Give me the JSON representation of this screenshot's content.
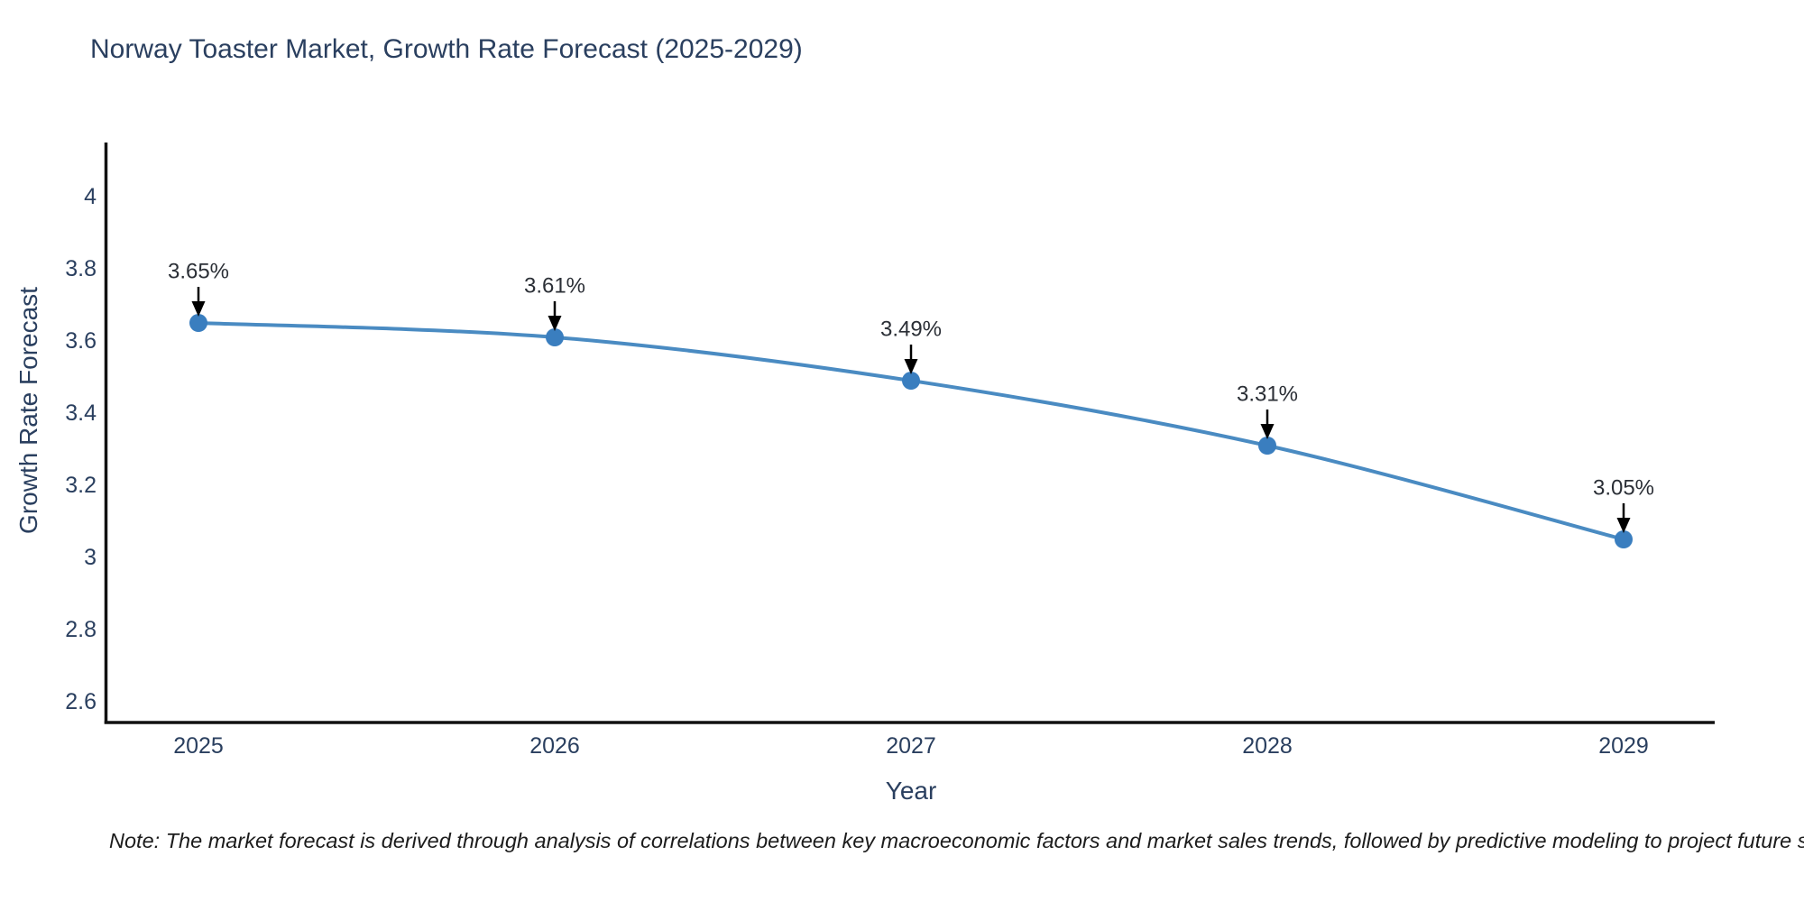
{
  "title": "Norway Toaster Market, Growth Rate Forecast (2025-2029)",
  "footnote": "Note: The market forecast is derived through analysis of correlations between key macroeconomic factors and market sales trends, followed by predictive modeling to project future sales",
  "chart_data": {
    "type": "line",
    "title": "Norway Toaster Market, Growth Rate Forecast (2025-2029)",
    "xlabel": "Year",
    "ylabel": "Growth Rate Forecast",
    "x": [
      2025,
      2026,
      2027,
      2028,
      2029
    ],
    "values": [
      3.65,
      3.61,
      3.49,
      3.31,
      3.05
    ],
    "point_labels": [
      "3.65%",
      "3.61%",
      "3.49%",
      "3.31%",
      "3.05%"
    ],
    "x_tick_labels": [
      "2025",
      "2026",
      "2027",
      "2028",
      "2029"
    ],
    "y_tick_labels": [
      "4",
      "3.8",
      "3.6",
      "3.4",
      "3.2",
      "3",
      "2.8",
      "2.6"
    ],
    "ylim": [
      2.54,
      4.15
    ],
    "grid": false,
    "legend": "none",
    "annotations_have_arrows": true,
    "colors": {
      "line": "#4a8bc2",
      "marker": "#3a7ebf",
      "axis": "#111111",
      "tick_text": "#2a3f5f",
      "annotation_text": "#2b2f36",
      "arrow": "#000000"
    }
  }
}
